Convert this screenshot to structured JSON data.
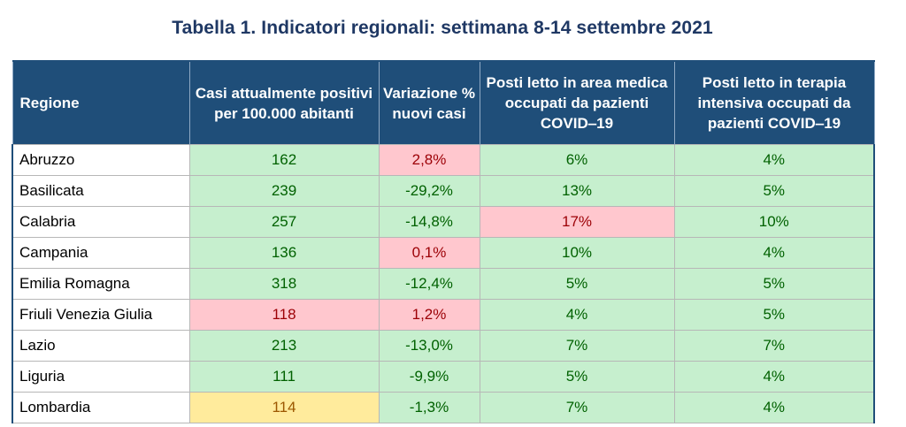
{
  "title": "Tabella 1. Indicatori regionali: settimana 8-14 settembre 2021",
  "colors": {
    "header_bg": "#1f4e79",
    "green_bg": "#c6efce",
    "green_text": "#006100",
    "red_bg": "#ffc7ce",
    "red_text": "#9c0006",
    "yellow_bg": "#ffeb9c",
    "yellow_text": "#9c5700"
  },
  "table": {
    "headers": [
      "Regione",
      "Casi attualmente positivi per 100.000 abitanti",
      "Variazione % nuovi casi",
      "Posti letto in area medica occupati da pazienti COVID‒19",
      "Posti letto in terapia intensiva occupati da pazienti COVID‒19"
    ],
    "rows": [
      {
        "region": "Abruzzo",
        "cells": [
          {
            "value": "162",
            "status": "green"
          },
          {
            "value": "2,8%",
            "status": "red"
          },
          {
            "value": "6%",
            "status": "green"
          },
          {
            "value": "4%",
            "status": "green"
          }
        ]
      },
      {
        "region": "Basilicata",
        "cells": [
          {
            "value": "239",
            "status": "green"
          },
          {
            "value": "-29,2%",
            "status": "green"
          },
          {
            "value": "13%",
            "status": "green"
          },
          {
            "value": "5%",
            "status": "green"
          }
        ]
      },
      {
        "region": "Calabria",
        "cells": [
          {
            "value": "257",
            "status": "green"
          },
          {
            "value": "-14,8%",
            "status": "green"
          },
          {
            "value": "17%",
            "status": "red"
          },
          {
            "value": "10%",
            "status": "green"
          }
        ]
      },
      {
        "region": "Campania",
        "cells": [
          {
            "value": "136",
            "status": "green"
          },
          {
            "value": "0,1%",
            "status": "red"
          },
          {
            "value": "10%",
            "status": "green"
          },
          {
            "value": "4%",
            "status": "green"
          }
        ]
      },
      {
        "region": "Emilia Romagna",
        "cells": [
          {
            "value": "318",
            "status": "green"
          },
          {
            "value": "-12,4%",
            "status": "green"
          },
          {
            "value": "5%",
            "status": "green"
          },
          {
            "value": "5%",
            "status": "green"
          }
        ]
      },
      {
        "region": "Friuli Venezia Giulia",
        "cells": [
          {
            "value": "118",
            "status": "red"
          },
          {
            "value": "1,2%",
            "status": "red"
          },
          {
            "value": "4%",
            "status": "green"
          },
          {
            "value": "5%",
            "status": "green"
          }
        ]
      },
      {
        "region": "Lazio",
        "cells": [
          {
            "value": "213",
            "status": "green"
          },
          {
            "value": "-13,0%",
            "status": "green"
          },
          {
            "value": "7%",
            "status": "green"
          },
          {
            "value": "7%",
            "status": "green"
          }
        ]
      },
      {
        "region": "Liguria",
        "cells": [
          {
            "value": "111",
            "status": "green"
          },
          {
            "value": "-9,9%",
            "status": "green"
          },
          {
            "value": "5%",
            "status": "green"
          },
          {
            "value": "4%",
            "status": "green"
          }
        ]
      },
      {
        "region": "Lombardia",
        "cells": [
          {
            "value": "114",
            "status": "yellow"
          },
          {
            "value": "-1,3%",
            "status": "green"
          },
          {
            "value": "7%",
            "status": "green"
          },
          {
            "value": "4%",
            "status": "green"
          }
        ]
      }
    ]
  }
}
